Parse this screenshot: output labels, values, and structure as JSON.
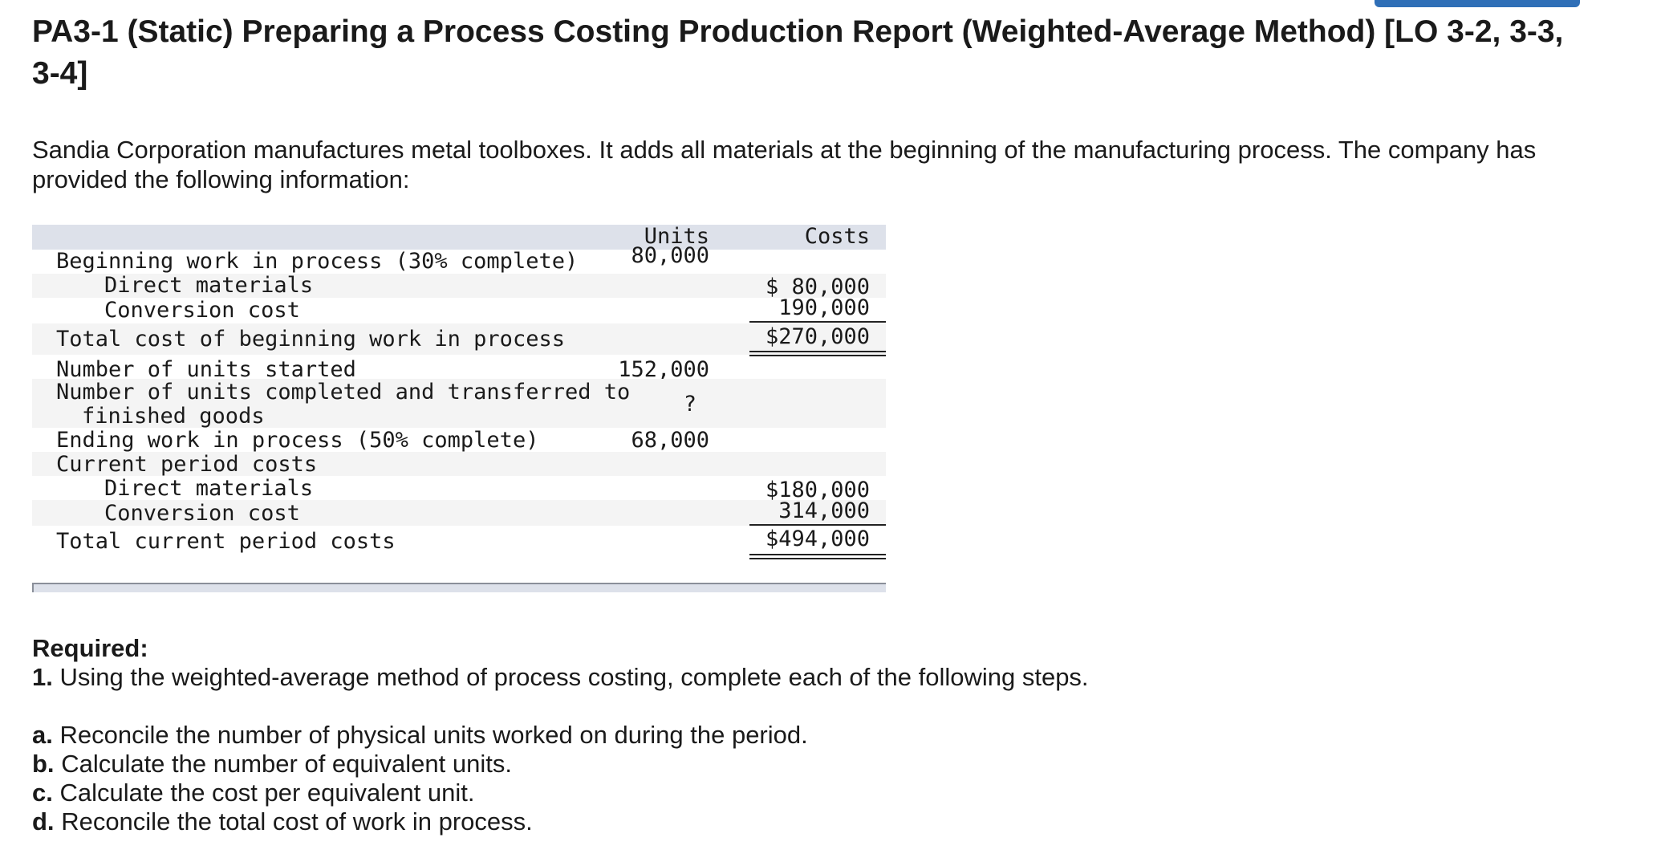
{
  "title": "PA3-1 (Static) Preparing a Process Costing Production Report (Weighted-Average Method) [LO 3-2, 3-3, 3-4]",
  "intro": "Sandia Corporation manufactures metal toolboxes. It adds all materials at the beginning of the manufacturing process. The company has provided the following information:",
  "table": {
    "header": {
      "units": "Units",
      "costs": "Costs"
    },
    "rows": [
      {
        "label": "Beginning work in process (30% complete)",
        "units": "80,000",
        "costs": ""
      },
      {
        "label": "Direct materials",
        "units": "",
        "costs": "$ 80,000"
      },
      {
        "label": "Conversion cost",
        "units": "",
        "costs": "190,000"
      },
      {
        "label": "Total cost of beginning work in process",
        "units": "",
        "costs": "$270,000"
      },
      {
        "label": "Number of units started",
        "units": "152,000",
        "costs": ""
      },
      {
        "label": "Number of units completed and transferred to",
        "label2": "finished goods",
        "units": "?",
        "costs": ""
      },
      {
        "label": "Ending work in process (50% complete)",
        "units": "68,000",
        "costs": ""
      },
      {
        "label": "Current period costs",
        "units": "",
        "costs": ""
      },
      {
        "label": "Direct materials",
        "units": "",
        "costs": "$180,000"
      },
      {
        "label": "Conversion cost",
        "units": "",
        "costs": "314,000"
      },
      {
        "label": "Total current period costs",
        "units": "",
        "costs": "$494,000"
      }
    ]
  },
  "required": {
    "heading": "Required:",
    "step1_num": "1.",
    "step1_text": "Using the weighted-average method of process costing, complete each of the following steps.",
    "items": [
      {
        "letter": "a.",
        "text": "Reconcile the number of physical units worked on during the period."
      },
      {
        "letter": "b.",
        "text": "Calculate the number of equivalent units."
      },
      {
        "letter": "c.",
        "text": "Calculate the cost per equivalent unit."
      },
      {
        "letter": "d.",
        "text": "Reconcile the total cost of work in process."
      }
    ]
  }
}
